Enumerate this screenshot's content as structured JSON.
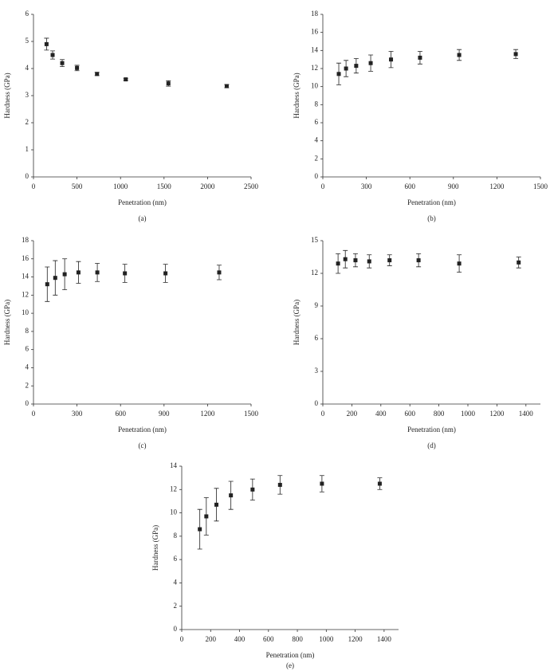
{
  "chart_data": [
    {
      "type": "scatter",
      "xlabel": "Penetration (nm)",
      "ylabel": "Hardness (GPa)",
      "caption": "(a)",
      "x": [
        150,
        220,
        330,
        500,
        730,
        1060,
        1550,
        2220
      ],
      "values": [
        4.9,
        4.5,
        4.2,
        4.02,
        3.8,
        3.6,
        3.45,
        3.35
      ],
      "errors": [
        0.22,
        0.15,
        0.13,
        0.1,
        0.06,
        0.04,
        0.1,
        0.06
      ],
      "xlim": [
        0,
        2500
      ],
      "xticks": [
        0,
        500,
        1000,
        1500,
        2000,
        2500
      ],
      "ylim": [
        0,
        6
      ],
      "yticks": [
        0,
        1,
        2,
        3,
        4,
        5,
        6
      ],
      "color": "#222222"
    },
    {
      "type": "scatter",
      "xlabel": "Penetration (nm)",
      "ylabel": "Hardness (GPa)",
      "caption": "(b)",
      "x": [
        110,
        160,
        230,
        330,
        470,
        670,
        940,
        1330
      ],
      "values": [
        11.4,
        12.0,
        12.3,
        12.6,
        13.0,
        13.2,
        13.5,
        13.6
      ],
      "errors": [
        1.2,
        0.9,
        0.8,
        0.9,
        0.9,
        0.7,
        0.6,
        0.5
      ],
      "xlim": [
        0,
        1500
      ],
      "xticks": [
        0,
        300,
        600,
        900,
        1200,
        1500
      ],
      "ylim": [
        0,
        18
      ],
      "yticks": [
        0,
        2,
        4,
        6,
        8,
        10,
        12,
        14,
        16,
        18
      ],
      "color": "#222222"
    },
    {
      "type": "scatter",
      "xlabel": "Penetration (nm)",
      "ylabel": "Hardness (GPa)",
      "caption": "(c)",
      "x": [
        95,
        150,
        215,
        310,
        440,
        630,
        910,
        1280
      ],
      "values": [
        13.2,
        13.9,
        14.3,
        14.5,
        14.5,
        14.4,
        14.4,
        14.5
      ],
      "errors": [
        1.9,
        1.9,
        1.7,
        1.2,
        1.0,
        1.0,
        1.0,
        0.8
      ],
      "xlim": [
        0,
        1500
      ],
      "xticks": [
        0,
        300,
        600,
        900,
        1200,
        1500
      ],
      "ylim": [
        0,
        18
      ],
      "yticks": [
        0,
        2,
        4,
        6,
        8,
        10,
        12,
        14,
        16,
        18
      ],
      "color": "#222222"
    },
    {
      "type": "scatter",
      "xlabel": "Penetration (nm)",
      "ylabel": "Hardness (GPa)",
      "caption": "(d)",
      "x": [
        105,
        155,
        225,
        320,
        460,
        660,
        940,
        1350
      ],
      "values": [
        12.9,
        13.3,
        13.2,
        13.1,
        13.2,
        13.2,
        12.9,
        13.0
      ],
      "errors": [
        0.9,
        0.8,
        0.6,
        0.6,
        0.5,
        0.6,
        0.8,
        0.5
      ],
      "xlim": [
        0,
        1500
      ],
      "xticks": [
        0,
        200,
        400,
        600,
        800,
        1000,
        1200,
        1400
      ],
      "ylim": [
        0,
        15
      ],
      "yticks": [
        0,
        3,
        6,
        9,
        12,
        15
      ],
      "color": "#222222"
    },
    {
      "type": "scatter",
      "xlabel": "Penetration (nm)",
      "ylabel": "Hardness (GPa)",
      "caption": "(e)",
      "x": [
        125,
        170,
        240,
        340,
        490,
        680,
        970,
        1370
      ],
      "values": [
        8.6,
        9.7,
        10.7,
        11.5,
        12.0,
        12.4,
        12.5,
        12.5
      ],
      "errors": [
        1.7,
        1.6,
        1.4,
        1.2,
        0.9,
        0.8,
        0.7,
        0.5
      ],
      "xlim": [
        0,
        1500
      ],
      "xticks": [
        0,
        200,
        400,
        600,
        800,
        1000,
        1200,
        1400
      ],
      "ylim": [
        0,
        14
      ],
      "yticks": [
        0,
        2,
        4,
        6,
        8,
        10,
        12,
        14
      ],
      "color": "#222222"
    }
  ]
}
